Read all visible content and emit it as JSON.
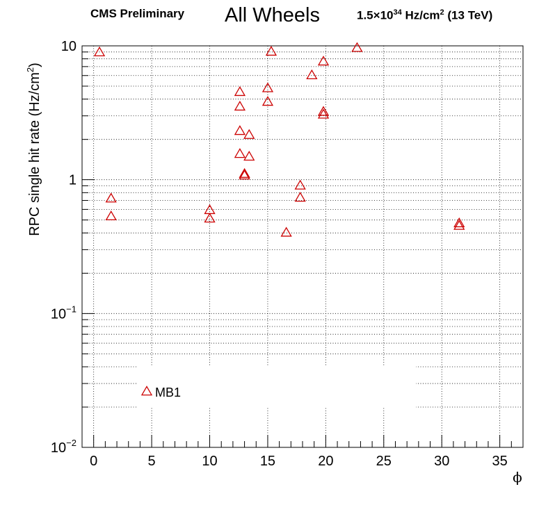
{
  "header": {
    "experiment": "CMS Preliminary",
    "lumi_prefix": "1.5",
    "lumi_times": "×",
    "lumi_base": "10",
    "lumi_exp": "34",
    "lumi_unit": " Hz/cm",
    "lumi_unit_exp": "2",
    "lumi_energy": " (13 TeV)"
  },
  "chart_data": {
    "type": "scatter",
    "title": "All Wheels",
    "xlabel": "ϕ",
    "ylabel": "RPC single hit rate (Hz/cm²)",
    "ylabel_parts": {
      "main": "RPC single hit rate (Hz/cm",
      "sup": "2",
      "close": ")"
    },
    "xlim": [
      -1,
      37
    ],
    "ylim": [
      0.01,
      10
    ],
    "yscale": "log",
    "grid": true,
    "xticks": [
      0,
      5,
      10,
      15,
      20,
      25,
      30,
      35
    ],
    "yticks": [
      {
        "value": 10,
        "label": "10"
      },
      {
        "value": 1,
        "label": "1"
      },
      {
        "value": 0.1,
        "label": "10",
        "exp": "−1"
      },
      {
        "value": 0.01,
        "label": "10",
        "exp": "−2"
      }
    ],
    "legend": {
      "position": "bottom-left",
      "entries": [
        "MB1"
      ]
    },
    "series": [
      {
        "name": "MB1",
        "color": "#cc0000",
        "marker": "open-triangle",
        "points": [
          [
            0.5,
            8.9
          ],
          [
            1.5,
            0.72
          ],
          [
            1.5,
            0.53
          ],
          [
            10.0,
            0.59
          ],
          [
            10.0,
            0.51
          ],
          [
            12.6,
            4.5
          ],
          [
            12.6,
            3.5
          ],
          [
            12.6,
            2.3
          ],
          [
            12.6,
            1.55
          ],
          [
            13.0,
            1.1
          ],
          [
            13.0,
            1.07
          ],
          [
            13.4,
            2.15
          ],
          [
            13.4,
            1.48
          ],
          [
            15.0,
            4.8
          ],
          [
            15.0,
            3.8
          ],
          [
            15.3,
            9.0
          ],
          [
            16.6,
            0.4
          ],
          [
            17.8,
            0.9
          ],
          [
            17.8,
            0.73
          ],
          [
            18.8,
            6.0
          ],
          [
            19.8,
            7.6
          ],
          [
            19.8,
            3.2
          ],
          [
            19.8,
            3.05
          ],
          [
            22.7,
            9.6
          ],
          [
            31.5,
            0.47
          ],
          [
            31.5,
            0.45
          ]
        ]
      }
    ]
  }
}
